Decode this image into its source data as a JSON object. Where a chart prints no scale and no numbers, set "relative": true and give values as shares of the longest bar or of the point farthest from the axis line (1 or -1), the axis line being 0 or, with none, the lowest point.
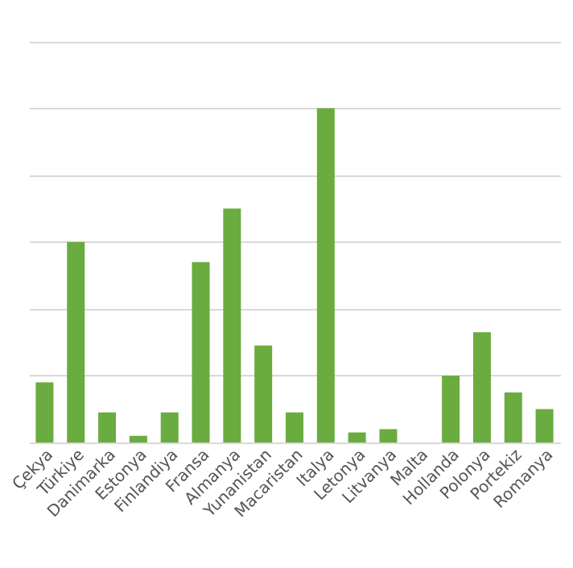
{
  "chart_data": {
    "type": "bar",
    "relative": true,
    "grid": "y",
    "color": "#6aac3f",
    "categories": [
      "Çekya",
      "Türkiye",
      "Danimarka",
      "Estonya",
      "Finlandiya",
      "Fransa",
      "Almanya",
      "Yunanistan",
      "Macaristan",
      "Italya",
      "Letonya",
      "Litvanya",
      "Malta",
      "Hollanda",
      "Polonya",
      "Portekiz",
      "Romanya"
    ],
    "values": [
      0.18,
      0.6,
      0.09,
      0.02,
      0.09,
      0.54,
      0.7,
      0.29,
      0.09,
      1,
      0.03,
      0.04,
      0,
      0.2,
      0.33,
      0.15,
      0.1
    ]
  }
}
